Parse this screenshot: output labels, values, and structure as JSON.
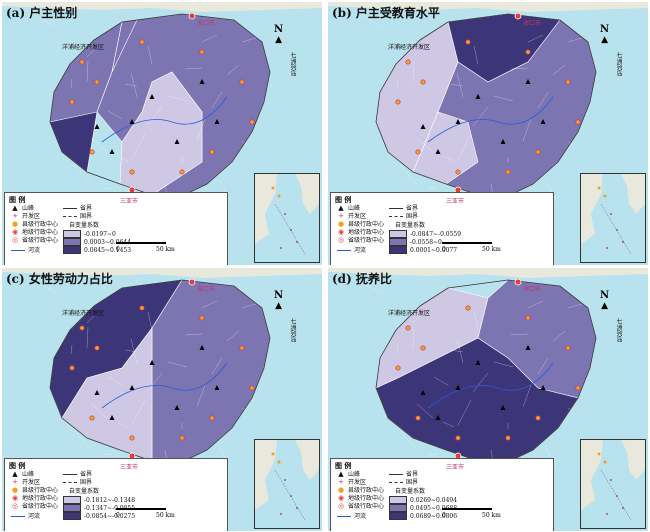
{
  "panels": [
    {
      "title": "(a) 户主性别",
      "legend": {
        "title": "图 例",
        "peak": "山峰",
        "dev": "开发区",
        "county": "县级行政中心",
        "prefecture": "地级行政中心",
        "province": "省级行政中心",
        "river": "河流",
        "prov_bound": "省界",
        "nat_bound": "国界",
        "coef_title": "自变量系数",
        "classes": [
          "-0.0197~0",
          "0.0003~0.0644",
          "0.0845~0.1453"
        ]
      }
    },
    {
      "title": "(b) 户主受教育水平",
      "legend": {
        "title": "图 例",
        "peak": "山峰",
        "dev": "开发区",
        "county": "县级行政中心",
        "prefecture": "地级行政中心",
        "province": "省级行政中心",
        "river": "河流",
        "prov_bound": "省界",
        "nat_bound": "国界",
        "coef_title": "自变量系数",
        "classes": [
          "-0.0847~-0.0559",
          "-0.0558~0",
          "0.0001~0.0077"
        ]
      }
    },
    {
      "title": "(c) 女性劳动力占比",
      "legend": {
        "title": "图 例",
        "peak": "山峰",
        "dev": "开发区",
        "county": "县级行政中心",
        "prefecture": "地级行政中心",
        "province": "省级行政中心",
        "river": "河流",
        "prov_bound": "省界",
        "nat_bound": "国界",
        "coef_title": "自变量系数",
        "classes": [
          "-0.1812~-0.1348",
          "-0.1347~-0.0855",
          "-0.0854~-0.0275"
        ]
      }
    },
    {
      "title": "(d) 抚养比",
      "legend": {
        "title": "图 例",
        "peak": "山峰",
        "dev": "开发区",
        "county": "县级行政中心",
        "prefecture": "地级行政中心",
        "province": "省级行政中心",
        "river": "河流",
        "prov_bound": "省界",
        "nat_bound": "国界",
        "coef_title": "自变量系数",
        "classes": [
          "0.0269~0.0494",
          "0.0495~0.0688",
          "0.0689~0.0806"
        ]
      }
    }
  ],
  "labels": {
    "scale_0": "0",
    "scale_50": "50 km",
    "north_n": "N",
    "islands": "七洲列岛",
    "devzone": "洋浦经济开发区",
    "haikou": "海口市",
    "sanya": "三亚市"
  },
  "colors": {
    "sea": "#b8e2ee",
    "light": "#cfc8e4",
    "mid": "#7d74b2",
    "dark": "#3c3577",
    "border": "#ffffff",
    "road": "#333333"
  }
}
